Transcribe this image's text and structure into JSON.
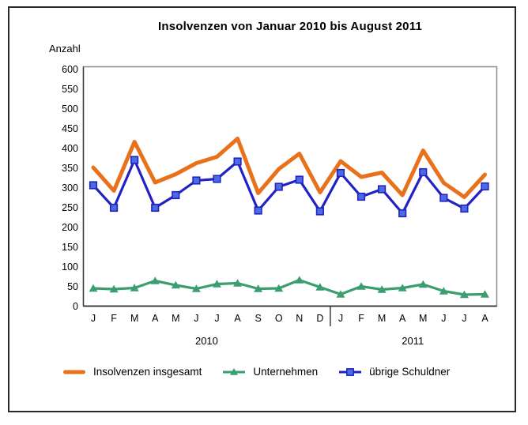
{
  "title": "Insolvenzen von Januar 2010 bis August 2011",
  "y_axis_title": "Anzahl",
  "chart_data": {
    "type": "line",
    "x_labels": [
      "J",
      "F",
      "M",
      "A",
      "M",
      "J",
      "J",
      "A",
      "S",
      "O",
      "N",
      "D",
      "J",
      "F",
      "M",
      "A",
      "M",
      "J",
      "J",
      "A"
    ],
    "x_year_groups": [
      {
        "label": "2010",
        "count": 12
      },
      {
        "label": "2011",
        "count": 8
      }
    ],
    "ylim": [
      0,
      600
    ],
    "yticks": [
      0,
      50,
      100,
      150,
      200,
      250,
      300,
      350,
      400,
      450,
      500,
      550,
      600
    ],
    "grid": false,
    "legend_position": "bottom",
    "series": [
      {
        "name": "Insolvenzen insgesamt",
        "color": "#E8721C",
        "marker": "none",
        "line_width": 5,
        "values": [
          351,
          292,
          416,
          313,
          334,
          362,
          378,
          424,
          286,
          347,
          386,
          288,
          367,
          327,
          338,
          281,
          394,
          312,
          276,
          333
        ]
      },
      {
        "name": "Unternehmen",
        "color": "#3A9E6E",
        "marker": "triangle",
        "line_width": 3.2,
        "values": [
          45,
          43,
          46,
          64,
          53,
          44,
          56,
          58,
          44,
          45,
          66,
          48,
          30,
          50,
          42,
          46,
          55,
          38,
          29,
          30
        ]
      },
      {
        "name": "übrige Schuldner",
        "color": "#2222C4",
        "marker": "square",
        "marker_fill": "#4B6BE0",
        "line_width": 3.2,
        "values": [
          306,
          249,
          370,
          249,
          281,
          318,
          322,
          366,
          242,
          302,
          320,
          240,
          337,
          277,
          296,
          235,
          339,
          274,
          247,
          303
        ]
      }
    ]
  }
}
